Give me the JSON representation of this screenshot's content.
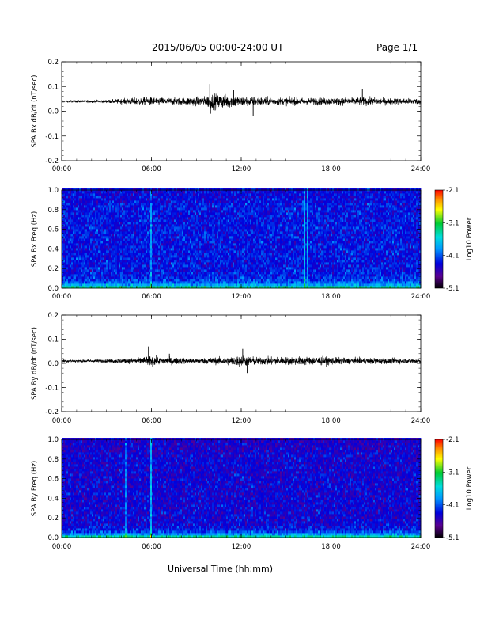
{
  "header": {
    "title": "2015/06/05  00:00-24:00 UT",
    "page": "Page 1/1"
  },
  "footer": {
    "xlabel": "Universal Time (hh:mm)"
  },
  "colors": {
    "trace": "#000000",
    "background": "#ffffff"
  },
  "chart_data": [
    {
      "type": "line",
      "ylabel": "SPA Bx dB/dt (nT/sec)",
      "xlim": [
        0,
        24
      ],
      "ylim": [
        -0.2,
        0.2
      ],
      "x_ticks": [
        "00:00",
        "06:00",
        "12:00",
        "18:00",
        "24:00"
      ],
      "y_ticks": [
        "-0.2",
        "-0.1",
        "0.0",
        "0.1",
        "0.2"
      ],
      "baseline": 0.04,
      "noise_profile": {
        "hours": [
          0,
          3,
          5,
          6,
          7.5,
          9.5,
          10,
          11,
          12,
          14,
          16,
          18,
          20,
          22,
          24
        ],
        "amplitude": [
          0.004,
          0.006,
          0.014,
          0.016,
          0.014,
          0.018,
          0.03,
          0.026,
          0.02,
          0.016,
          0.014,
          0.014,
          0.016,
          0.012,
          0.012
        ]
      },
      "spikes": [
        {
          "hour": 9.9,
          "value": 0.11
        },
        {
          "hour": 9.95,
          "value": -0.01
        },
        {
          "hour": 11.5,
          "value": 0.085
        },
        {
          "hour": 12.8,
          "value": -0.02
        },
        {
          "hour": 15.2,
          "value": -0.005
        },
        {
          "hour": 20.1,
          "value": 0.09
        }
      ]
    },
    {
      "type": "heatmap",
      "ylabel": "SPA Bx Freq (Hz)",
      "colorbar_label": "Log10 Power",
      "colorbar_ticks": [
        "-2.1",
        "-3.1",
        "-4.1",
        "-5.1"
      ],
      "clim": [
        -5.1,
        -2.1
      ],
      "xlim": [
        0,
        24
      ],
      "ylim": [
        0,
        1
      ],
      "x_ticks": [
        "00:00",
        "06:00",
        "12:00",
        "18:00",
        "24:00"
      ],
      "y_ticks": [
        "0.0",
        "0.2",
        "0.4",
        "0.6",
        "0.8",
        "1.0"
      ],
      "background_power": -4.3,
      "low_freq_power": -3.0,
      "vertical_features": [
        {
          "hour": 6.0,
          "power": -3.8
        },
        {
          "hour": 16.2,
          "power": -3.6
        },
        {
          "hour": 16.4,
          "power": -3.7
        }
      ]
    },
    {
      "type": "line",
      "ylabel": "SPA By dB/dt (nT/sec)",
      "xlim": [
        0,
        24
      ],
      "ylim": [
        -0.2,
        0.2
      ],
      "x_ticks": [
        "00:00",
        "06:00",
        "12:00",
        "18:00",
        "24:00"
      ],
      "y_ticks": [
        "-0.2",
        "-0.1",
        "0.0",
        "0.1",
        "0.2"
      ],
      "baseline": 0.01,
      "noise_profile": {
        "hours": [
          0,
          3,
          5,
          6,
          7,
          9,
          11,
          12,
          13,
          15,
          17,
          19,
          21,
          23,
          24
        ],
        "amplitude": [
          0.006,
          0.007,
          0.012,
          0.02,
          0.014,
          0.01,
          0.016,
          0.022,
          0.016,
          0.016,
          0.018,
          0.012,
          0.012,
          0.01,
          0.01
        ]
      },
      "spikes": [
        {
          "hour": 5.8,
          "value": 0.07
        },
        {
          "hour": 12.1,
          "value": 0.06
        },
        {
          "hour": 12.4,
          "value": -0.04
        },
        {
          "hour": 7.2,
          "value": 0.04
        }
      ]
    },
    {
      "type": "heatmap",
      "ylabel": "SPA By Freq (Hz)",
      "colorbar_label": "Log10 Power",
      "colorbar_ticks": [
        "-2.1",
        "-3.1",
        "-4.1",
        "-5.1"
      ],
      "clim": [
        -5.1,
        -2.1
      ],
      "xlim": [
        0,
        24
      ],
      "ylim": [
        0,
        1
      ],
      "x_ticks": [
        "00:00",
        "06:00",
        "12:00",
        "18:00",
        "24:00"
      ],
      "y_ticks": [
        "0.0",
        "0.2",
        "0.4",
        "0.6",
        "0.8",
        "1.0"
      ],
      "background_power": -4.4,
      "low_freq_power": -3.0,
      "vertical_features": [
        {
          "hour": 4.3,
          "power": -3.9
        },
        {
          "hour": 6.0,
          "power": -3.6
        }
      ]
    }
  ]
}
